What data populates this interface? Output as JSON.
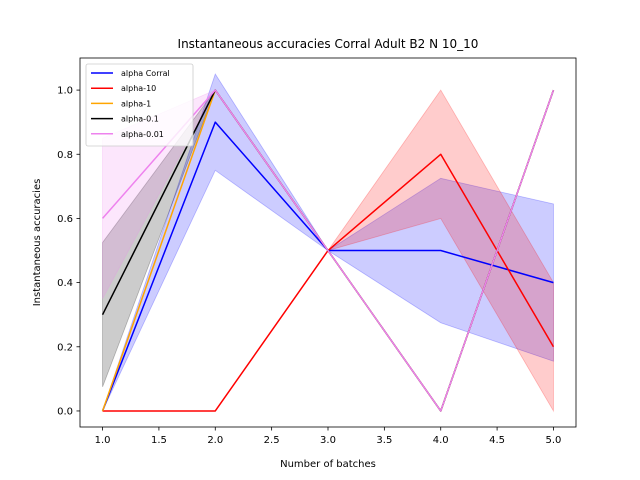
{
  "chart_data": {
    "type": "line",
    "title": "Instantaneous accuracies Corral Adult B2 N 10_10",
    "xlabel": "Number of batches",
    "ylabel": "Instantaneous accuracies",
    "xlim": [
      0.8,
      5.2
    ],
    "ylim": [
      -0.05,
      1.1
    ],
    "xticks": [
      "1.0",
      "1.5",
      "2.0",
      "2.5",
      "3.0",
      "3.5",
      "4.0",
      "4.5",
      "5.0"
    ],
    "yticks": [
      "0.0",
      "0.2",
      "0.4",
      "0.6",
      "0.8",
      "1.0"
    ],
    "grid": false,
    "legend_position": "top-left",
    "x": [
      1,
      2,
      3,
      4,
      5
    ],
    "series": [
      {
        "name": "alpha Corral",
        "color": "#0000ff",
        "values": [
          0.0,
          0.9,
          0.5,
          0.5,
          0.4
        ],
        "lower": [
          0.0,
          0.75,
          0.5,
          0.275,
          0.155
        ],
        "upper": [
          0.0,
          1.05,
          0.5,
          0.725,
          0.645
        ]
      },
      {
        "name": "alpha-10",
        "color": "#ff0000",
        "values": [
          0.0,
          0.0,
          0.5,
          0.8,
          0.2
        ],
        "lower": [
          0.0,
          0.0,
          0.5,
          0.6,
          0.0
        ],
        "upper": [
          0.0,
          0.0,
          0.5,
          1.0,
          0.4
        ]
      },
      {
        "name": "alpha-1",
        "color": "#ffa500",
        "values": [
          0.0,
          1.0,
          0.5,
          0.0,
          1.0
        ],
        "lower": [
          0.0,
          1.0,
          0.5,
          0.0,
          1.0
        ],
        "upper": [
          0.0,
          1.0,
          0.5,
          0.0,
          1.0
        ]
      },
      {
        "name": "alpha-0.1",
        "color": "#000000",
        "values": [
          0.3,
          1.0,
          0.5,
          0.0,
          1.0
        ],
        "lower": [
          0.075,
          1.0,
          0.5,
          0.0,
          1.0
        ],
        "upper": [
          0.525,
          1.0,
          0.5,
          0.0,
          1.0
        ]
      },
      {
        "name": "alpha-0.01",
        "color": "#ee82ee",
        "values": [
          0.6,
          1.0,
          0.5,
          0.0,
          1.0
        ],
        "lower": [
          0.35,
          1.0,
          0.5,
          0.0,
          1.0
        ],
        "upper": [
          0.85,
          1.0,
          0.5,
          0.0,
          1.0
        ]
      }
    ]
  }
}
